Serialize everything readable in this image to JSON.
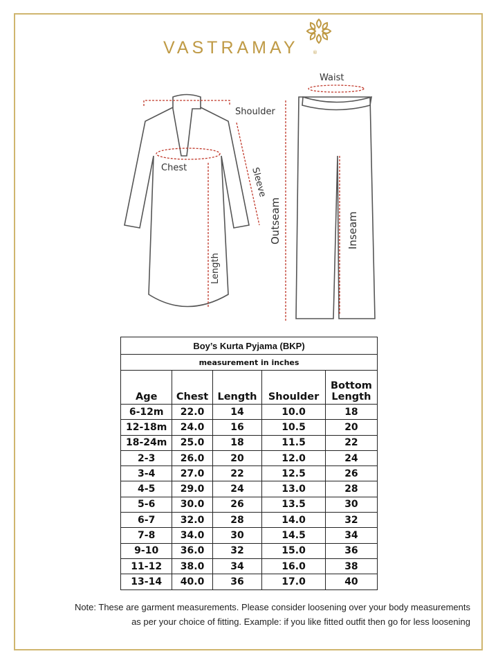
{
  "brand": {
    "name": "VASTRAMAY",
    "registered": "®",
    "color": "#bf9a45"
  },
  "diagram": {
    "kurta_labels": {
      "shoulder": "Shoulder",
      "chest": "Chest",
      "sleeve": "Sleeve",
      "length": "Length"
    },
    "pyjama_labels": {
      "waist": "Waist",
      "outseam": "Outseam",
      "inseam": "Inseam"
    },
    "measure_color": "#c0392b"
  },
  "table": {
    "title": "Boy’s Kurta Pyjama (BKP)",
    "subtitle": "measurement in inches",
    "headers": [
      {
        "top": "",
        "bottom": "Age"
      },
      {
        "top": "",
        "bottom": "Chest"
      },
      {
        "top": "",
        "bottom": "Length"
      },
      {
        "top": "",
        "bottom": "Shoulder"
      },
      {
        "top": "Bottom",
        "bottom": "Length"
      }
    ],
    "rows": [
      [
        "6-12m",
        "22.0",
        "14",
        "10.0",
        "18"
      ],
      [
        "12-18m",
        "24.0",
        "16",
        "10.5",
        "20"
      ],
      [
        "18-24m",
        "25.0",
        "18",
        "11.5",
        "22"
      ],
      [
        "2-3",
        "26.0",
        "20",
        "12.0",
        "24"
      ],
      [
        "3-4",
        "27.0",
        "22",
        "12.5",
        "26"
      ],
      [
        "4-5",
        "29.0",
        "24",
        "13.0",
        "28"
      ],
      [
        "5-6",
        "30.0",
        "26",
        "13.5",
        "30"
      ],
      [
        "6-7",
        "32.0",
        "28",
        "14.0",
        "32"
      ],
      [
        "7-8",
        "34.0",
        "30",
        "14.5",
        "34"
      ],
      [
        "9-10",
        "36.0",
        "32",
        "15.0",
        "36"
      ],
      [
        "11-12",
        "38.0",
        "34",
        "16.0",
        "38"
      ],
      [
        "13-14",
        "40.0",
        "36",
        "17.0",
        "40"
      ]
    ]
  },
  "note": {
    "line1": "Note: These are garment measurements. Please consider loosening over your body measurements",
    "line2": "as per your choice of fitting. Example: if you like fitted outfit then go for less loosening"
  }
}
